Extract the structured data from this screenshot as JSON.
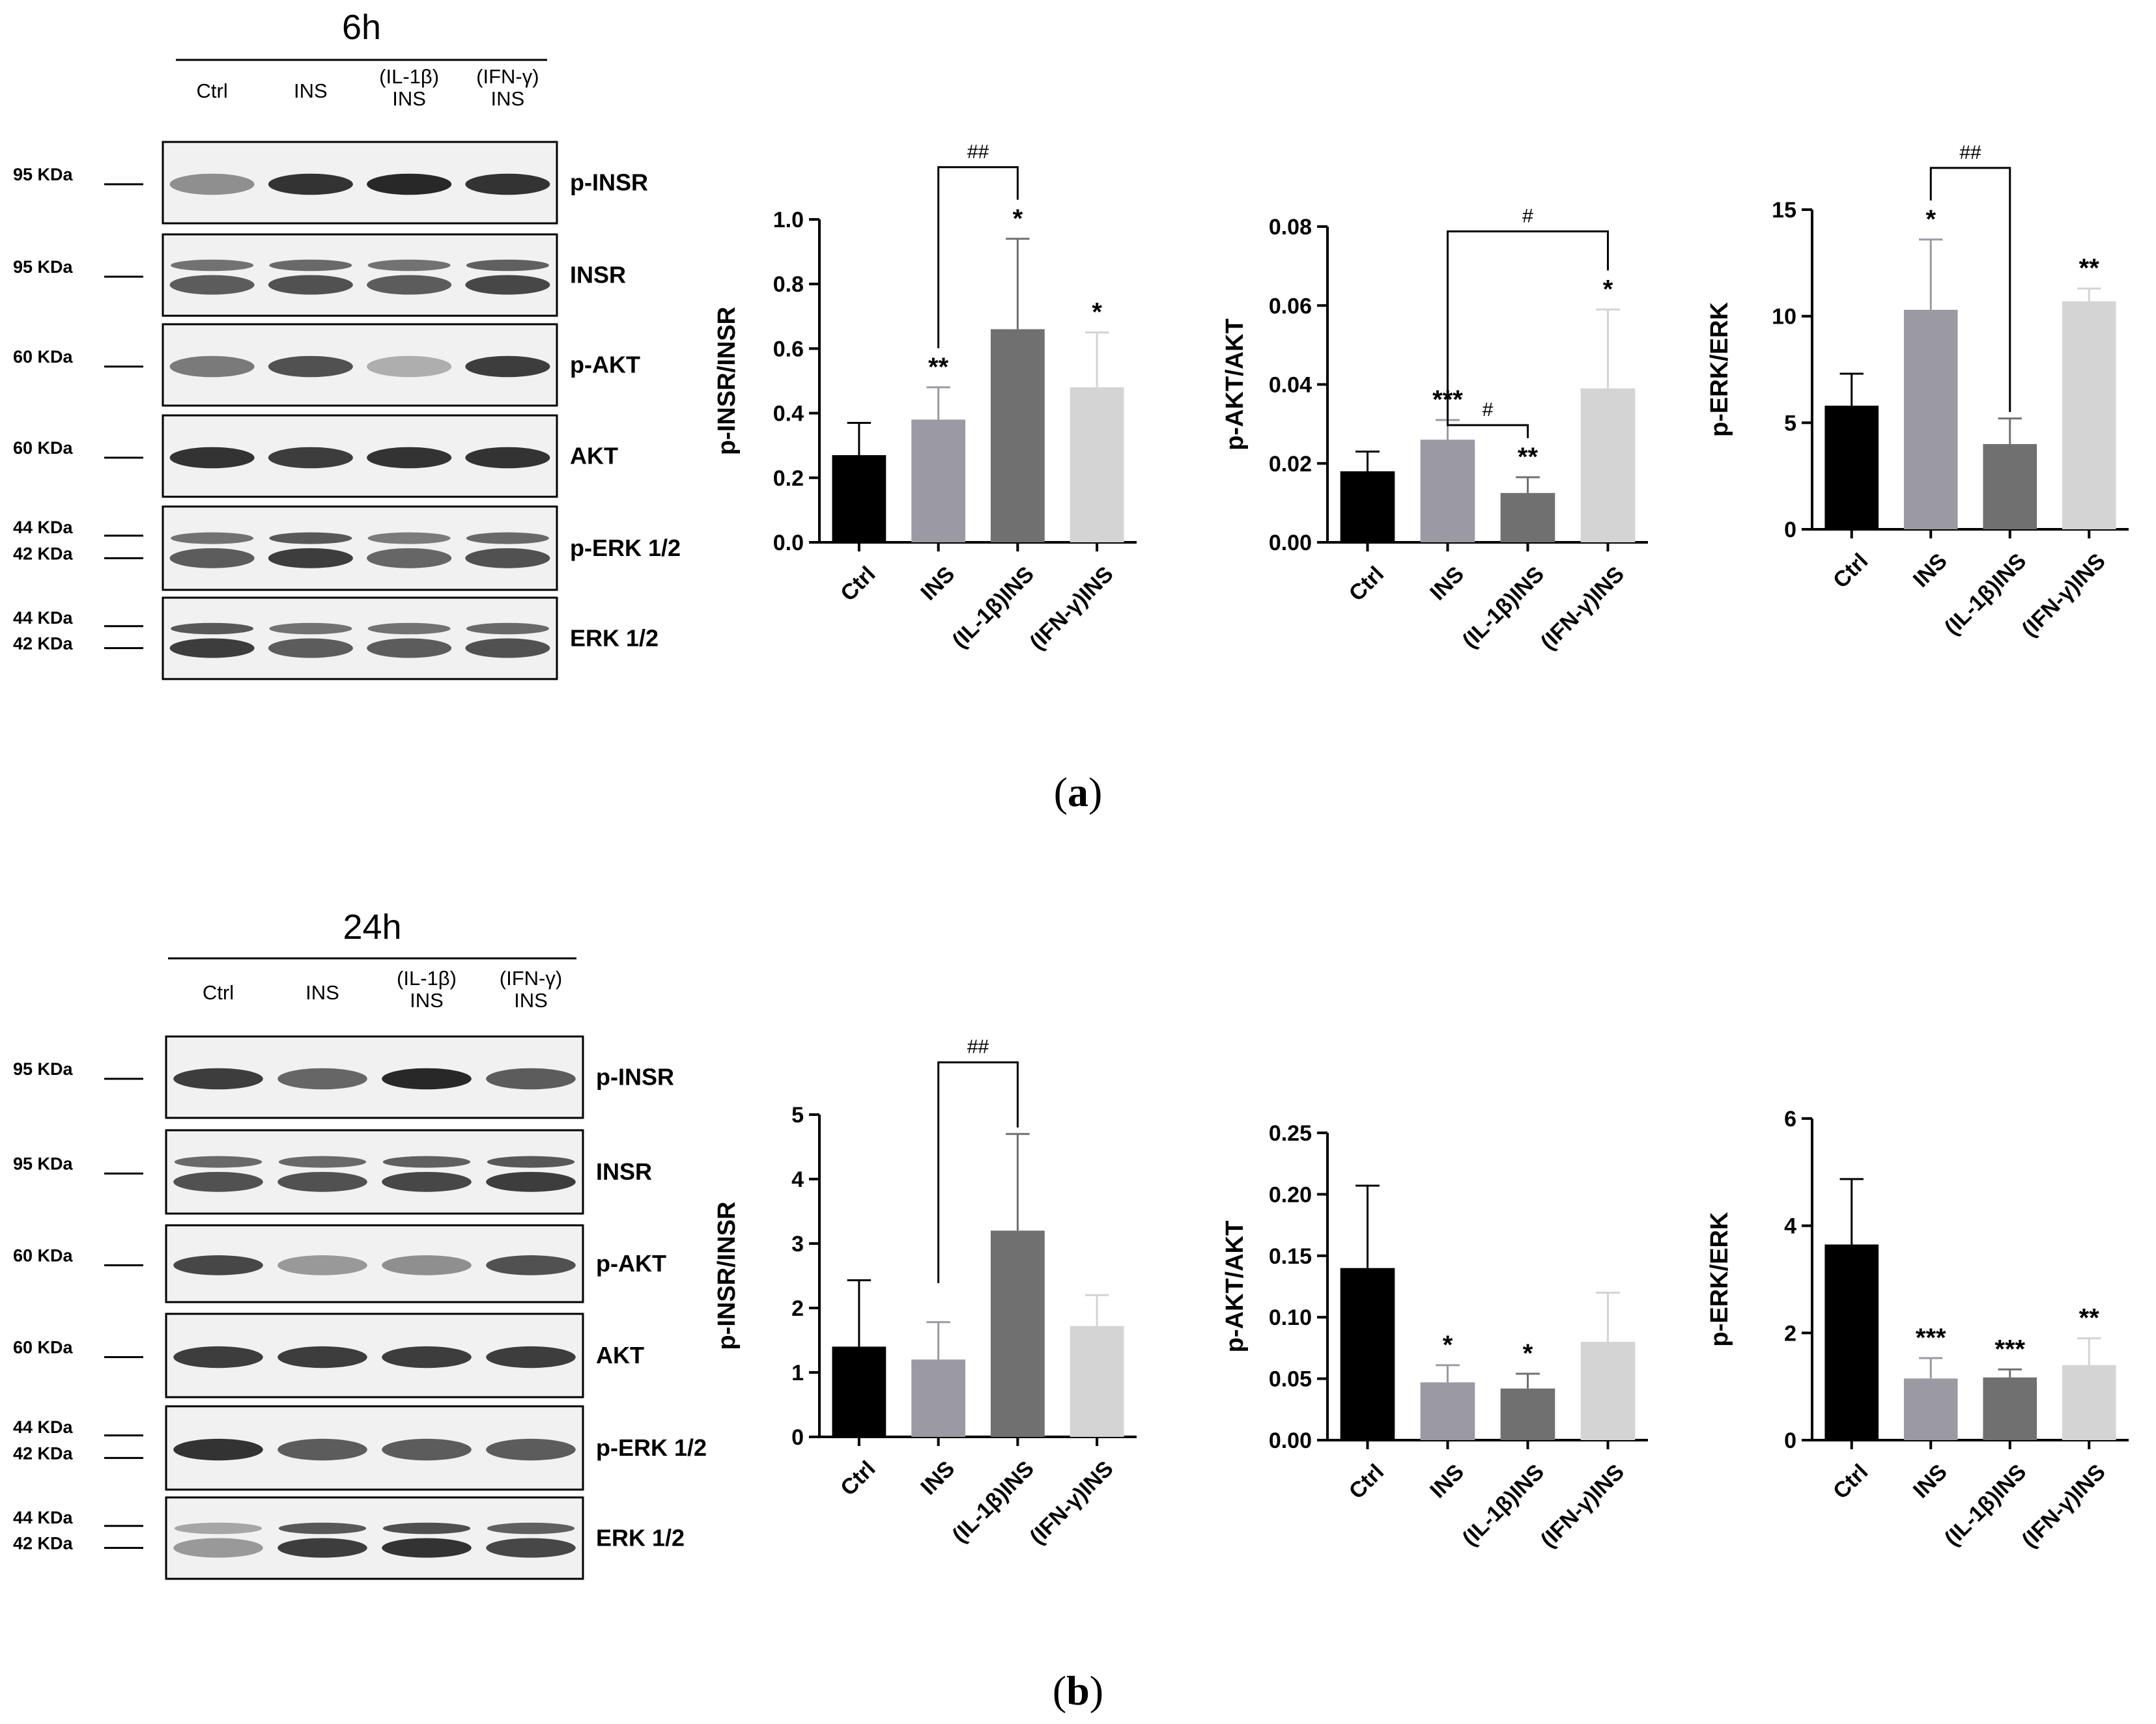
{
  "panels": [
    {
      "letter": "a",
      "blot": {
        "time": "6h",
        "lanes": [
          "Ctrl",
          "INS",
          "(IL-1β)\nINS",
          "(IFN-γ)\nINS"
        ],
        "rows": [
          {
            "label": "p-INSR",
            "markers": [
              "95 KDa"
            ],
            "bands": [
              [
                0.45
              ],
              [
                0.9
              ],
              [
                0.95
              ],
              [
                0.9
              ]
            ],
            "doublet": false
          },
          {
            "label": "INSR",
            "markers": [
              "95 KDa"
            ],
            "bands": [
              [
                0.7
              ],
              [
                0.75
              ],
              [
                0.7
              ],
              [
                0.8
              ]
            ],
            "doublet": true
          },
          {
            "label": "p-AKT",
            "markers": [
              "60 KDa"
            ],
            "bands": [
              [
                0.55
              ],
              [
                0.75
              ],
              [
                0.3
              ],
              [
                0.85
              ]
            ],
            "doublet": false
          },
          {
            "label": "AKT",
            "markers": [
              "60 KDa"
            ],
            "bands": [
              [
                0.9
              ],
              [
                0.85
              ],
              [
                0.9
              ],
              [
                0.9
              ]
            ],
            "doublet": false
          },
          {
            "label": "p-ERK 1/2",
            "markers": [
              "44 KDa",
              "42 KDa"
            ],
            "bands": [
              [
                0.7
              ],
              [
                0.85
              ],
              [
                0.65
              ],
              [
                0.75
              ]
            ],
            "doublet": true
          },
          {
            "label": "ERK 1/2",
            "markers": [
              "44 KDa",
              "42 KDa"
            ],
            "bands": [
              [
                0.85
              ],
              [
                0.7
              ],
              [
                0.7
              ],
              [
                0.75
              ]
            ],
            "doublet": true
          }
        ]
      }
    },
    {
      "letter": "b",
      "blot": {
        "time": "24h",
        "lanes": [
          "Ctrl",
          "INS",
          "(IL-1β)\nINS",
          "(IFN-γ)\nINS"
        ],
        "rows": [
          {
            "label": "p-INSR",
            "markers": [
              "95 KDa"
            ],
            "bands": [
              [
                0.85
              ],
              [
                0.65
              ],
              [
                0.95
              ],
              [
                0.7
              ]
            ],
            "doublet": false
          },
          {
            "label": "INSR",
            "markers": [
              "95 KDa"
            ],
            "bands": [
              [
                0.75
              ],
              [
                0.75
              ],
              [
                0.8
              ],
              [
                0.85
              ]
            ],
            "doublet": true
          },
          {
            "label": "p-AKT",
            "markers": [
              "60 KDa"
            ],
            "bands": [
              [
                0.8
              ],
              [
                0.4
              ],
              [
                0.45
              ],
              [
                0.75
              ]
            ],
            "doublet": false
          },
          {
            "label": "AKT",
            "markers": [
              "60 KDa"
            ],
            "bands": [
              [
                0.85
              ],
              [
                0.85
              ],
              [
                0.85
              ],
              [
                0.85
              ]
            ],
            "doublet": false
          },
          {
            "label": "p-ERK 1/2",
            "markers": [
              "44 KDa",
              "42 KDa"
            ],
            "bands": [
              [
                0.9
              ],
              [
                0.7
              ],
              [
                0.7
              ],
              [
                0.7
              ]
            ],
            "doublet": false
          },
          {
            "label": "ERK 1/2",
            "markers": [
              "44 KDa",
              "42 KDa"
            ],
            "bands": [
              [
                0.4
              ],
              [
                0.85
              ],
              [
                0.9
              ],
              [
                0.8
              ]
            ],
            "doublet": true
          }
        ]
      }
    }
  ],
  "chart_data": [
    {
      "type": "bar",
      "panel": "a",
      "categories": [
        "Ctrl",
        "INS",
        "(IL-1β)INS",
        "(IFN-γ)INS"
      ],
      "values": [
        0.27,
        0.38,
        0.66,
        0.48
      ],
      "errors": [
        0.1,
        0.1,
        0.28,
        0.17
      ],
      "significance": [
        "",
        "**",
        "*",
        "*"
      ],
      "brackets": [
        {
          "from": 1,
          "to": 2,
          "label": "##"
        }
      ],
      "ylabel": "p-INSR/INSR",
      "ylim": [
        0,
        1.0
      ],
      "yticks": [
        0.0,
        0.2,
        0.4,
        0.6,
        0.8,
        1.0
      ],
      "ytick_decimals": 1,
      "colors": [
        "#000000",
        "#9b9aa3",
        "#707070",
        "#d4d4d4"
      ]
    },
    {
      "type": "bar",
      "panel": "a",
      "categories": [
        "Ctrl",
        "INS",
        "(IL-1β)INS",
        "(IFN-γ)INS"
      ],
      "values": [
        0.018,
        0.026,
        0.0125,
        0.039
      ],
      "errors": [
        0.005,
        0.005,
        0.004,
        0.02
      ],
      "significance": [
        "",
        "***",
        "**",
        "*"
      ],
      "brackets": [
        {
          "from": 1,
          "to": 3,
          "label": "#"
        },
        {
          "from": 1,
          "to": 2,
          "label": "#"
        }
      ],
      "ylabel": "p-AKT/AKT",
      "ylim": [
        0,
        0.08
      ],
      "yticks": [
        0.0,
        0.02,
        0.04,
        0.06,
        0.08
      ],
      "ytick_decimals": 2,
      "colors": [
        "#000000",
        "#9b9aa3",
        "#707070",
        "#d4d4d4"
      ]
    },
    {
      "type": "bar",
      "panel": "a",
      "categories": [
        "Ctrl",
        "INS",
        "(IL-1β)INS",
        "(IFN-γ)INS"
      ],
      "values": [
        5.8,
        10.3,
        4.0,
        10.7
      ],
      "errors": [
        1.5,
        3.3,
        1.2,
        0.6
      ],
      "significance": [
        "",
        "*",
        "",
        "**"
      ],
      "brackets": [
        {
          "from": 1,
          "to": 2,
          "label": "##"
        }
      ],
      "ylabel": "p-ERK/ERK",
      "ylim": [
        0,
        15
      ],
      "yticks": [
        0,
        5,
        10,
        15
      ],
      "ytick_decimals": 0,
      "colors": [
        "#000000",
        "#9b9aa3",
        "#707070",
        "#d4d4d4"
      ]
    },
    {
      "type": "bar",
      "panel": "b",
      "categories": [
        "Ctrl",
        "INS",
        "(IL-1β)INS",
        "(IFN-γ)INS"
      ],
      "values": [
        1.4,
        1.2,
        3.2,
        1.72
      ],
      "errors": [
        1.03,
        0.58,
        1.5,
        0.48
      ],
      "significance": [
        "",
        "",
        "",
        ""
      ],
      "brackets": [
        {
          "from": 1,
          "to": 2,
          "label": "##"
        }
      ],
      "ylabel": "p-INSR/INSR",
      "ylim": [
        0,
        5
      ],
      "yticks": [
        0,
        1,
        2,
        3,
        4,
        5
      ],
      "ytick_decimals": 0,
      "colors": [
        "#000000",
        "#9b9aa3",
        "#707070",
        "#d4d4d4"
      ]
    },
    {
      "type": "bar",
      "panel": "b",
      "categories": [
        "Ctrl",
        "INS",
        "(IL-1β)INS",
        "(IFN-γ)INS"
      ],
      "values": [
        0.14,
        0.047,
        0.042,
        0.08
      ],
      "errors": [
        0.067,
        0.014,
        0.012,
        0.04
      ],
      "significance": [
        "",
        "*",
        "*",
        ""
      ],
      "brackets": [],
      "ylabel": "p-AKT/AKT",
      "ylim": [
        0,
        0.25
      ],
      "yticks": [
        0.0,
        0.05,
        0.1,
        0.15,
        0.2,
        0.25
      ],
      "ytick_decimals": 2,
      "colors": [
        "#000000",
        "#9b9aa3",
        "#707070",
        "#d4d4d4"
      ]
    },
    {
      "type": "bar",
      "panel": "b",
      "categories": [
        "Ctrl",
        "INS",
        "(IL-1β)INS",
        "(IFN-γ)INS"
      ],
      "values": [
        3.65,
        1.15,
        1.17,
        1.4
      ],
      "errors": [
        1.22,
        0.38,
        0.15,
        0.5
      ],
      "significance": [
        "",
        "***",
        "***",
        "**"
      ],
      "brackets": [],
      "ylabel": "p-ERK/ERK",
      "ylim": [
        0,
        6
      ],
      "yticks": [
        0,
        2,
        4,
        6
      ],
      "ytick_decimals": 0,
      "colors": [
        "#000000",
        "#9b9aa3",
        "#707070",
        "#d4d4d4"
      ]
    }
  ]
}
